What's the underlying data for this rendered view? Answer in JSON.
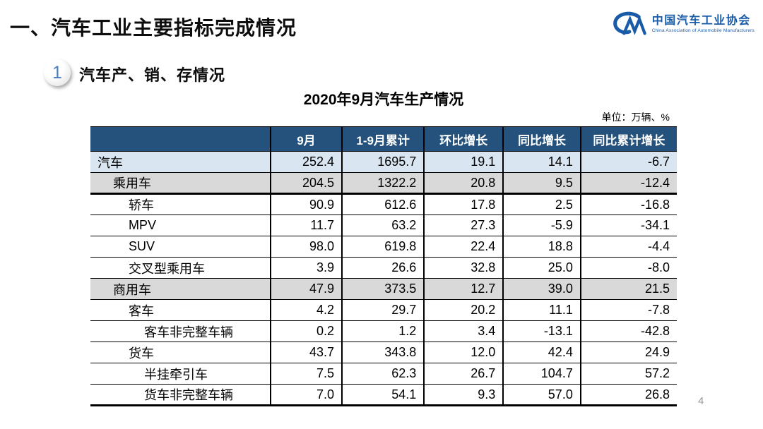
{
  "page": {
    "title": "一、汽车工业主要指标完成情况",
    "page_number": "4"
  },
  "logo": {
    "name_cn": "中国汽车工业协会",
    "name_en": "China Association of Automobile Manufacturers",
    "color": "#1A5BA8"
  },
  "section": {
    "number": "1",
    "title": "汽车产、销、存情况"
  },
  "table": {
    "title": "2020年9月汽车生产情况",
    "unit_label": "单位：万辆、%",
    "columns": [
      "",
      "9月",
      "1-9月累计",
      "环比增长",
      "同比增长",
      "同比累计增长"
    ],
    "rows": [
      {
        "label": "汽车",
        "indent": 0,
        "bg": "blue",
        "thick_bottom": false,
        "values": [
          "252.4",
          "1695.7",
          "19.1",
          "14.1",
          "-6.7"
        ]
      },
      {
        "label": "乘用车",
        "indent": 1,
        "bg": "gray",
        "thick_bottom": true,
        "values": [
          "204.5",
          "1322.2",
          "20.8",
          "9.5",
          "-12.4"
        ]
      },
      {
        "label": "轿车",
        "indent": 2,
        "bg": "white",
        "thick_bottom": false,
        "values": [
          "90.9",
          "612.6",
          "17.8",
          "2.5",
          "-16.8"
        ]
      },
      {
        "label": "MPV",
        "indent": 2,
        "bg": "white",
        "thick_bottom": false,
        "values": [
          "11.7",
          "63.2",
          "27.3",
          "-5.9",
          "-34.1"
        ]
      },
      {
        "label": "SUV",
        "indent": 2,
        "bg": "white",
        "thick_bottom": false,
        "values": [
          "98.0",
          "619.8",
          "22.4",
          "18.8",
          "-4.4"
        ]
      },
      {
        "label": "交叉型乘用车",
        "indent": 2,
        "bg": "white",
        "thick_bottom": false,
        "values": [
          "3.9",
          "26.6",
          "32.8",
          "25.0",
          "-8.0"
        ]
      },
      {
        "label": "商用车",
        "indent": 1,
        "bg": "gray",
        "thick_bottom": false,
        "values": [
          "47.9",
          "373.5",
          "12.7",
          "39.0",
          "21.5"
        ]
      },
      {
        "label": "客车",
        "indent": 2,
        "bg": "white",
        "thick_bottom": false,
        "values": [
          "4.2",
          "29.7",
          "20.2",
          "11.1",
          "-7.8"
        ]
      },
      {
        "label": "客车非完整车辆",
        "indent": 3,
        "bg": "white",
        "thick_bottom": false,
        "values": [
          "0.2",
          "1.2",
          "3.4",
          "-13.1",
          "-42.8"
        ]
      },
      {
        "label": "货车",
        "indent": 2,
        "bg": "white",
        "thick_bottom": false,
        "values": [
          "43.7",
          "343.8",
          "12.0",
          "42.4",
          "24.9"
        ]
      },
      {
        "label": "半挂牵引车",
        "indent": 3,
        "bg": "white",
        "thick_bottom": false,
        "values": [
          "7.5",
          "62.3",
          "26.7",
          "104.7",
          "57.2"
        ]
      },
      {
        "label": "货车非完整车辆",
        "indent": 3,
        "bg": "white",
        "thick_bottom": false,
        "values": [
          "7.0",
          "54.1",
          "9.3",
          "57.0",
          "26.8"
        ]
      }
    ]
  },
  "colors": {
    "header_bg": "#24527C",
    "row_highlight_blue": "#D9E5F1",
    "row_highlight_gray": "#D9D9D9",
    "logo_blue": "#1A5BA8",
    "badge_number_blue": "#4A7EBB"
  }
}
